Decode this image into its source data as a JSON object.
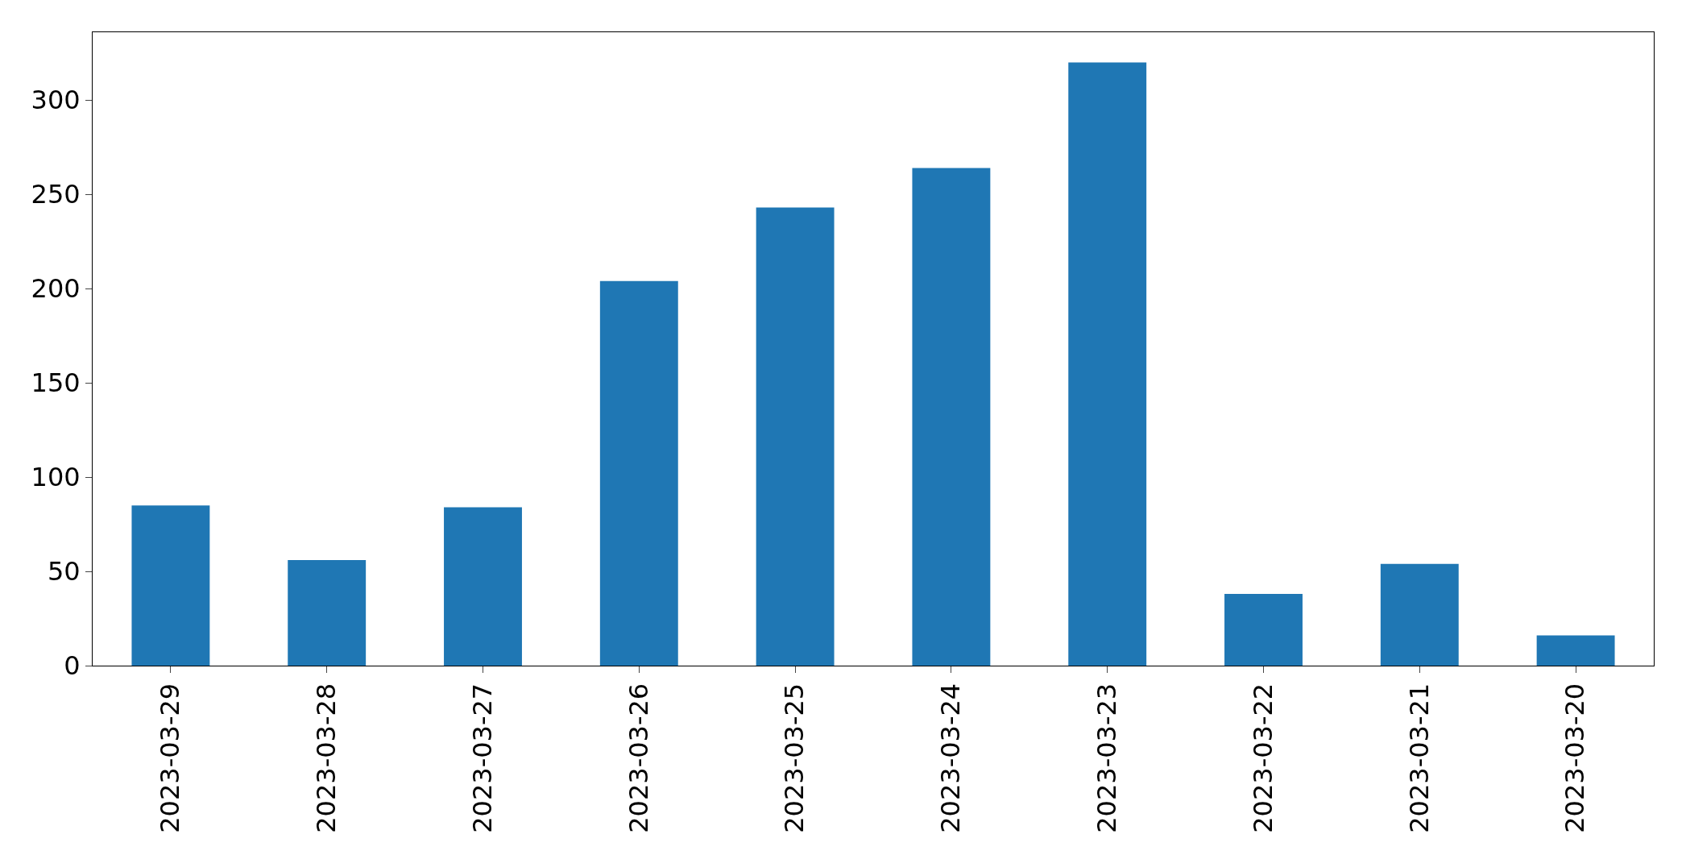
{
  "chart_data": {
    "type": "bar",
    "categories": [
      "2023-03-29",
      "2023-03-28",
      "2023-03-27",
      "2023-03-26",
      "2023-03-25",
      "2023-03-24",
      "2023-03-23",
      "2023-03-22",
      "2023-03-21",
      "2023-03-20"
    ],
    "values": [
      85,
      56,
      84,
      204,
      243,
      264,
      320,
      38,
      54,
      16
    ],
    "color": "#1f77b4",
    "ylim": [
      0,
      336
    ],
    "yticks": [
      0,
      50,
      100,
      150,
      200,
      250,
      300
    ],
    "legend": false
  }
}
